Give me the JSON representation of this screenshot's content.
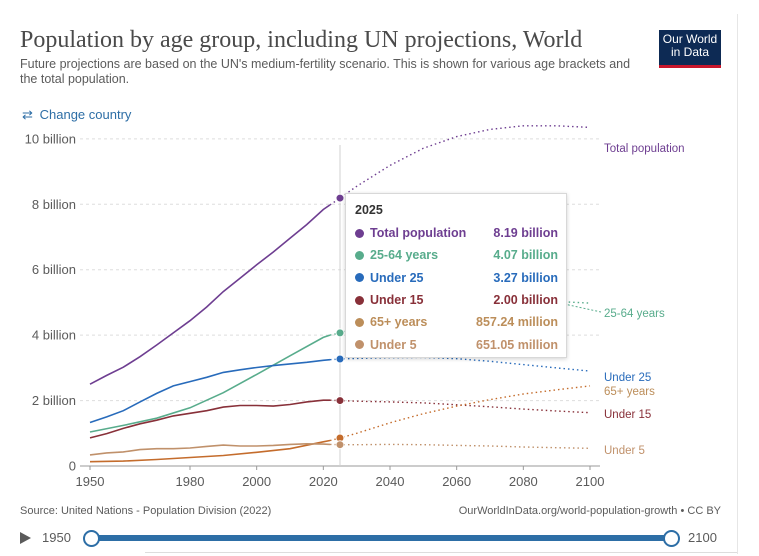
{
  "header": {
    "title": "Population by age group, including UN projections, World",
    "subtitle": "Future projections are based on the UN's medium-fertility scenario. This is shown for various age brackets and the total population.",
    "logo_line1": "Our World",
    "logo_line2": "in Data",
    "change_country": "Change country"
  },
  "colors": {
    "total": "#6e3e91",
    "age25_64": "#58ac8c",
    "under25": "#286bbb",
    "under15": "#883039",
    "age65plus": "#bc8e5a",
    "under5": "#c0916b",
    "age65plus_line": "#c46c2c"
  },
  "chart_data": {
    "type": "line",
    "xlabel": "",
    "ylabel": "",
    "xlim": [
      1947,
      2103
    ],
    "ylim": [
      0,
      10.5
    ],
    "x_ticks": [
      "1950",
      "1980",
      "2000",
      "2020",
      "2040",
      "2060",
      "2080",
      "2100"
    ],
    "y_ticks": [
      {
        "value": 0,
        "label": "0"
      },
      {
        "value": 2,
        "label": "2 billion"
      },
      {
        "value": 4,
        "label": "4 billion"
      },
      {
        "value": 6,
        "label": "6 billion"
      },
      {
        "value": 8,
        "label": "8 billion"
      },
      {
        "value": 10,
        "label": "10 billion"
      }
    ],
    "projection_start": 2022,
    "highlight_year": 2025,
    "series": [
      {
        "key": "total",
        "name": "Total population",
        "end_label": "Total population",
        "x": [
          1950,
          1955,
          1960,
          1965,
          1970,
          1975,
          1980,
          1985,
          1990,
          1995,
          2000,
          2005,
          2010,
          2015,
          2020,
          2022,
          2025,
          2030,
          2040,
          2050,
          2060,
          2070,
          2080,
          2090,
          2100
        ],
        "y": [
          2.5,
          2.77,
          3.02,
          3.34,
          3.7,
          4.07,
          4.44,
          4.86,
          5.33,
          5.74,
          6.15,
          6.54,
          6.96,
          7.38,
          7.84,
          7.98,
          8.19,
          8.55,
          9.19,
          9.71,
          10.07,
          10.29,
          10.4,
          10.4,
          10.35
        ]
      },
      {
        "key": "age25_64",
        "name": "25-64 years",
        "end_label": "25-64 years",
        "x": [
          1950,
          1960,
          1970,
          1980,
          1990,
          2000,
          2010,
          2020,
          2022,
          2025,
          2040,
          2060,
          2080,
          2100
        ],
        "y": [
          1.04,
          1.24,
          1.46,
          1.78,
          2.24,
          2.8,
          3.37,
          3.93,
          4.0,
          4.07,
          4.6,
          4.95,
          5.08,
          4.98
        ]
      },
      {
        "key": "under25",
        "name": "Under 25",
        "end_label": "Under 25",
        "x": [
          1950,
          1955,
          1960,
          1965,
          1970,
          1975,
          1980,
          1985,
          1990,
          1995,
          2000,
          2005,
          2010,
          2015,
          2020,
          2022,
          2025,
          2030,
          2040,
          2050,
          2060,
          2070,
          2080,
          2090,
          2100
        ],
        "y": [
          1.33,
          1.5,
          1.69,
          1.96,
          2.22,
          2.45,
          2.58,
          2.71,
          2.86,
          2.94,
          3.01,
          3.07,
          3.12,
          3.17,
          3.23,
          3.25,
          3.27,
          3.29,
          3.31,
          3.32,
          3.28,
          3.2,
          3.1,
          3.0,
          2.9
        ]
      },
      {
        "key": "under15",
        "name": "Under 15",
        "end_label": "Under 15",
        "x": [
          1950,
          1955,
          1960,
          1965,
          1970,
          1975,
          1980,
          1985,
          1990,
          1995,
          2000,
          2005,
          2010,
          2015,
          2020,
          2022,
          2025,
          2030,
          2040,
          2050,
          2060,
          2070,
          2080,
          2090,
          2100
        ],
        "y": [
          0.86,
          0.99,
          1.15,
          1.29,
          1.4,
          1.53,
          1.61,
          1.69,
          1.8,
          1.85,
          1.85,
          1.83,
          1.88,
          1.96,
          2.01,
          2.01,
          2.0,
          1.98,
          1.96,
          1.93,
          1.87,
          1.81,
          1.74,
          1.68,
          1.63
        ]
      },
      {
        "key": "age65plus",
        "name": "65+ years",
        "end_label": "65+ years",
        "x": [
          1950,
          1960,
          1970,
          1980,
          1990,
          2000,
          2010,
          2020,
          2022,
          2025,
          2030,
          2040,
          2050,
          2060,
          2070,
          2080,
          2090,
          2100
        ],
        "y": [
          0.13,
          0.15,
          0.2,
          0.26,
          0.32,
          0.42,
          0.53,
          0.74,
          0.78,
          0.857,
          1.0,
          1.32,
          1.6,
          1.83,
          2.03,
          2.2,
          2.33,
          2.45
        ]
      },
      {
        "key": "under5",
        "name": "Under 5",
        "end_label": "Under 5",
        "x": [
          1950,
          1955,
          1960,
          1965,
          1970,
          1975,
          1980,
          1985,
          1990,
          1995,
          2000,
          2005,
          2010,
          2015,
          2020,
          2022,
          2025,
          2030,
          2040,
          2050,
          2060,
          2070,
          2080,
          2090,
          2100
        ],
        "y": [
          0.34,
          0.4,
          0.43,
          0.5,
          0.53,
          0.53,
          0.55,
          0.6,
          0.64,
          0.61,
          0.61,
          0.63,
          0.66,
          0.68,
          0.67,
          0.66,
          0.651,
          0.65,
          0.66,
          0.65,
          0.63,
          0.61,
          0.58,
          0.56,
          0.54
        ]
      }
    ],
    "tooltip": {
      "year": "2025",
      "rows": [
        {
          "key": "total",
          "label": "Total population",
          "value": "8.19 billion"
        },
        {
          "key": "age25_64",
          "label": "25-64 years",
          "value": "4.07 billion"
        },
        {
          "key": "under25",
          "label": "Under 25",
          "value": "3.27 billion"
        },
        {
          "key": "under15",
          "label": "Under 15",
          "value": "2.00 billion"
        },
        {
          "key": "age65plus",
          "label": "65+ years",
          "value": "857.24 million"
        },
        {
          "key": "under5",
          "label": "Under 5",
          "value": "651.05 million"
        }
      ]
    }
  },
  "footer": {
    "source": "Source: United Nations - Population Division (2022)",
    "credit": "OurWorldInData.org/world-population-growth • CC BY"
  },
  "timeline": {
    "start": "1950",
    "end": "2100"
  }
}
